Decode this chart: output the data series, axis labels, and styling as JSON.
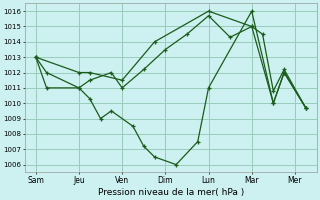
{
  "xlabel": "Pression niveau de la mer( hPa )",
  "background_color": "#cdf0f0",
  "grid_color": "#99ccbb",
  "line_color": "#1a5c1a",
  "ylim": [
    1005.5,
    1016.5
  ],
  "yticks": [
    1006,
    1007,
    1008,
    1009,
    1010,
    1011,
    1012,
    1013,
    1014,
    1015,
    1016
  ],
  "x_labels": [
    "Sam",
    "Jeu",
    "Ven",
    "Dim",
    "Lun",
    "Mar",
    "Mer"
  ],
  "x_positions": [
    0,
    2,
    4,
    6,
    8,
    10,
    12
  ],
  "xlim": [
    -0.5,
    13.0
  ],
  "series1": {
    "x": [
      0,
      0.5,
      2,
      2.5,
      3.5,
      4,
      5,
      6,
      7,
      8,
      9,
      10,
      10.5,
      11,
      11.5,
      12.5
    ],
    "y": [
      1013.0,
      1012.0,
      1011.0,
      1011.5,
      1012.0,
      1011.0,
      1012.2,
      1013.5,
      1014.5,
      1015.7,
      1014.3,
      1015.0,
      1014.5,
      1010.8,
      1012.2,
      1009.7
    ]
  },
  "series2": {
    "x": [
      0,
      0.5,
      2,
      2.5,
      3.0,
      3.5,
      4.5,
      5.0,
      5.5,
      6.5,
      7.5,
      8,
      10,
      11,
      11.5,
      12.5
    ],
    "y": [
      1013.0,
      1011.0,
      1011.0,
      1010.3,
      1009.0,
      1009.5,
      1008.5,
      1007.2,
      1006.5,
      1006.0,
      1007.5,
      1011.0,
      1016.0,
      1010.0,
      1012.0,
      1009.7
    ]
  },
  "series3": {
    "x": [
      0,
      2,
      2.5,
      4,
      5.5,
      8,
      10,
      11,
      11.5,
      12.5
    ],
    "y": [
      1013.0,
      1012.0,
      1012.0,
      1011.5,
      1014.0,
      1016.0,
      1015.0,
      1010.0,
      1012.0,
      1009.7
    ]
  }
}
